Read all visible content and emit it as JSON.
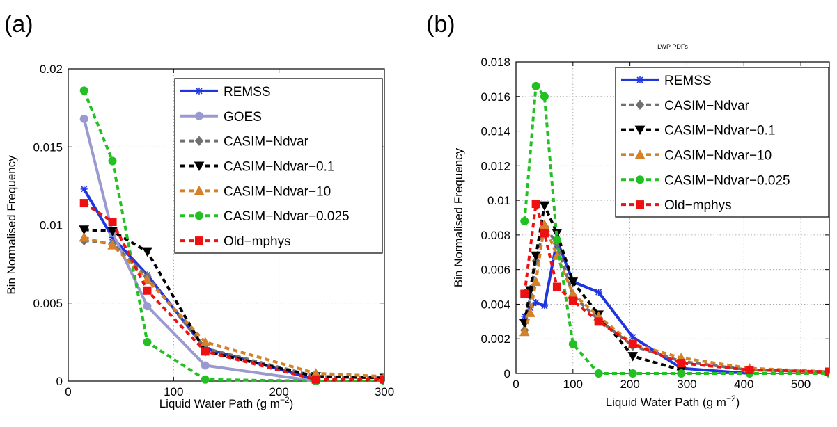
{
  "panels": [
    {
      "label": "(a)"
    },
    {
      "label": "(b)"
    }
  ],
  "chart_data": [
    {
      "type": "line",
      "title": "",
      "xlabel_main": "Liquid Water Path (g m",
      "xlabel_exp": "−2",
      "xlabel_close": ")",
      "ylabel": "Bin Normalised Frequency",
      "xlim": [
        0,
        300
      ],
      "ylim": [
        0,
        0.02
      ],
      "xticks": [
        0,
        100,
        200,
        300
      ],
      "yticks": [
        0,
        0.005,
        0.01,
        0.015,
        0.02
      ],
      "xticklabels": [
        "0",
        "100",
        "200",
        "300"
      ],
      "yticklabels": [
        "0",
        "0.005",
        "0.01",
        "0.015",
        "0.02"
      ],
      "grid": true,
      "legend_position": "top-right",
      "series": [
        {
          "name": "REMSS",
          "color": "#1f35e0",
          "dash": "solid",
          "marker": "star",
          "x": [
            15,
            42,
            75,
            130,
            235
          ],
          "y": [
            0.0123,
            0.0092,
            0.0068,
            0.0021,
            0.0001
          ]
        },
        {
          "name": "GOES",
          "color": "#9a9ad0",
          "dash": "solid",
          "marker": "circle",
          "x": [
            15,
            42,
            75,
            130,
            235
          ],
          "y": [
            0.0168,
            0.0095,
            0.0048,
            0.001,
            0.0
          ]
        },
        {
          "name": "CASIM−Ndvar",
          "color": "#707070",
          "dash": "dashed",
          "marker": "diamond",
          "x": [
            15,
            42,
            75,
            130,
            235,
            300
          ],
          "y": [
            0.009,
            0.0088,
            0.0067,
            0.0021,
            0.0003,
            0.0002
          ]
        },
        {
          "name": "CASIM−Ndvar−0.1",
          "color": "#000000",
          "dash": "dashed",
          "marker": "triangle-down",
          "x": [
            15,
            42,
            75,
            130,
            235,
            300
          ],
          "y": [
            0.0097,
            0.0096,
            0.0083,
            0.0019,
            0.0003,
            0.0002
          ]
        },
        {
          "name": "CASIM−Ndvar−10",
          "color": "#d4812a",
          "dash": "dashed",
          "marker": "triangle-up",
          "x": [
            15,
            42,
            75,
            130,
            235,
            300
          ],
          "y": [
            0.0092,
            0.0087,
            0.0065,
            0.0025,
            0.0005,
            0.0003
          ]
        },
        {
          "name": "CASIM−Ndvar−0.025",
          "color": "#22c022",
          "dash": "dashed",
          "marker": "circle",
          "x": [
            15,
            42,
            75,
            130,
            235,
            300
          ],
          "y": [
            0.0186,
            0.0141,
            0.0025,
            0.0001,
            0.0,
            0.0
          ]
        },
        {
          "name": "Old−mphys",
          "color": "#ee1111",
          "dash": "dashed",
          "marker": "square",
          "x": [
            15,
            42,
            75,
            130,
            235,
            300
          ],
          "y": [
            0.0114,
            0.0102,
            0.0058,
            0.0019,
            0.0001,
            0.0001
          ]
        }
      ]
    },
    {
      "type": "line",
      "title": "LWP PDFs",
      "xlabel_main": "Liquid Water Path (g m",
      "xlabel_exp": "−2",
      "xlabel_close": ")",
      "ylabel": "Bin Normalised Frequency",
      "xlim": [
        0,
        550
      ],
      "ylim": [
        0,
        0.018
      ],
      "xticks": [
        0,
        100,
        200,
        300,
        400,
        500
      ],
      "yticks": [
        0,
        0.002,
        0.004,
        0.006,
        0.008,
        0.01,
        0.012,
        0.014,
        0.016,
        0.018
      ],
      "xticklabels": [
        "0",
        "100",
        "200",
        "300",
        "400",
        "500"
      ],
      "yticklabels": [
        "0",
        "0.002",
        "0.004",
        "0.006",
        "0.008",
        "0.01",
        "0.012",
        "0.014",
        "0.016",
        "0.018"
      ],
      "grid": true,
      "legend_position": "top-right",
      "series": [
        {
          "name": "REMSS",
          "color": "#1f35e0",
          "dash": "solid",
          "marker": "star",
          "x": [
            15,
            25,
            35,
            50,
            72,
            100,
            145,
            205,
            290,
            410
          ],
          "y": [
            0.0033,
            0.0038,
            0.0041,
            0.0039,
            0.0077,
            0.0053,
            0.0047,
            0.0021,
            0.0003,
            0.0
          ]
        },
        {
          "name": "CASIM−Ndvar",
          "color": "#707070",
          "dash": "dashed",
          "marker": "diamond",
          "x": [
            15,
            25,
            35,
            50,
            72,
            100,
            145,
            205,
            290,
            410,
            550
          ],
          "y": [
            0.0025,
            0.0045,
            0.0065,
            0.0085,
            0.0075,
            0.0045,
            0.0031,
            0.0016,
            0.0007,
            0.0002,
            0.0001
          ]
        },
        {
          "name": "CASIM−Ndvar−0.1",
          "color": "#000000",
          "dash": "dashed",
          "marker": "triangle-down",
          "x": [
            15,
            25,
            35,
            50,
            72,
            100,
            145,
            205,
            290
          ],
          "y": [
            0.0029,
            0.0048,
            0.0068,
            0.0097,
            0.0081,
            0.0053,
            0.0034,
            0.001,
            0.0002
          ]
        },
        {
          "name": "CASIM−Ndvar−10",
          "color": "#d4812a",
          "dash": "dashed",
          "marker": "triangle-up",
          "x": [
            15,
            25,
            35,
            50,
            72,
            100,
            145,
            205,
            290,
            410,
            550
          ],
          "y": [
            0.0024,
            0.0035,
            0.0053,
            0.0086,
            0.0068,
            0.0046,
            0.0033,
            0.0017,
            0.0009,
            0.0003,
            0.0001
          ]
        },
        {
          "name": "CASIM−Ndvar−0.025",
          "color": "#22c022",
          "dash": "dashed",
          "marker": "circle",
          "x": [
            15,
            35,
            50,
            72,
            100,
            145,
            205,
            290,
            410,
            550
          ],
          "y": [
            0.0088,
            0.0166,
            0.016,
            0.0077,
            0.0017,
            0.0,
            0.0,
            0.0,
            0.0,
            0.0
          ]
        },
        {
          "name": "Old−mphys",
          "color": "#ee1111",
          "dash": "dashed",
          "marker": "square",
          "x": [
            15,
            35,
            50,
            72,
            100,
            145,
            205,
            290,
            410,
            550
          ],
          "y": [
            0.0046,
            0.0098,
            0.0081,
            0.005,
            0.0042,
            0.003,
            0.0017,
            0.0006,
            0.0002,
            0.0001
          ]
        }
      ]
    }
  ]
}
